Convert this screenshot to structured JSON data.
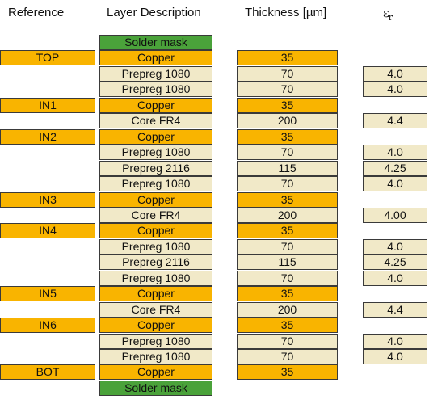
{
  "headers": {
    "reference": "Reference",
    "description": "Layer Description",
    "thickness": "Thickness [µm]",
    "er_symbol": "ε",
    "er_sub": "r"
  },
  "layers": [
    {
      "desc": "Solder mask",
      "type": "mask",
      "ref": "",
      "thk": "",
      "er": ""
    },
    {
      "desc": "Copper",
      "type": "copper",
      "ref": "TOP",
      "thk": "35",
      "er": ""
    },
    {
      "desc": "Prepreg 1080",
      "type": "prepreg",
      "ref": "",
      "thk": "70",
      "er": "4.0"
    },
    {
      "desc": "Prepreg 1080",
      "type": "prepreg",
      "ref": "",
      "thk": "70",
      "er": "4.0"
    },
    {
      "desc": "Copper",
      "type": "copper",
      "ref": "IN1",
      "thk": "35",
      "er": ""
    },
    {
      "desc": "Core FR4",
      "type": "core",
      "ref": "",
      "thk": "200",
      "er": "4.4"
    },
    {
      "desc": "Copper",
      "type": "copper",
      "ref": "IN2",
      "thk": "35",
      "er": ""
    },
    {
      "desc": "Prepreg 1080",
      "type": "prepreg",
      "ref": "",
      "thk": "70",
      "er": "4.0"
    },
    {
      "desc": "Prepreg 2116",
      "type": "prepreg",
      "ref": "",
      "thk": "115",
      "er": "4.25"
    },
    {
      "desc": "Prepreg 1080",
      "type": "prepreg",
      "ref": "",
      "thk": "70",
      "er": "4.0"
    },
    {
      "desc": "Copper",
      "type": "copper",
      "ref": "IN3",
      "thk": "35",
      "er": ""
    },
    {
      "desc": "Core FR4",
      "type": "core",
      "ref": "",
      "thk": "200",
      "er": "4.00"
    },
    {
      "desc": "Copper",
      "type": "copper",
      "ref": "IN4",
      "thk": "35",
      "er": ""
    },
    {
      "desc": "Prepreg 1080",
      "type": "prepreg",
      "ref": "",
      "thk": "70",
      "er": "4.0"
    },
    {
      "desc": "Prepreg 2116",
      "type": "prepreg",
      "ref": "",
      "thk": "115",
      "er": "4.25"
    },
    {
      "desc": "Prepreg 1080",
      "type": "prepreg",
      "ref": "",
      "thk": "70",
      "er": "4.0"
    },
    {
      "desc": "Copper",
      "type": "copper",
      "ref": "IN5",
      "thk": "35",
      "er": ""
    },
    {
      "desc": "Core FR4",
      "type": "core",
      "ref": "",
      "thk": "200",
      "er": "4.4"
    },
    {
      "desc": "Copper",
      "type": "copper",
      "ref": "IN6",
      "thk": "35",
      "er": ""
    },
    {
      "desc": "Prepreg 1080",
      "type": "prepreg",
      "ref": "",
      "thk": "70",
      "er": "4.0"
    },
    {
      "desc": "Prepreg 1080",
      "type": "prepreg",
      "ref": "",
      "thk": "70",
      "er": "4.0"
    },
    {
      "desc": "Copper",
      "type": "copper",
      "ref": "BOT",
      "thk": "35",
      "er": ""
    },
    {
      "desc": "Solder mask",
      "type": "mask",
      "ref": "",
      "thk": "",
      "er": ""
    }
  ],
  "colors": {
    "copper": "#f9b400",
    "prepreg": "#f1e9c8",
    "core": "#f1e9c8",
    "mask": "#4aa23a",
    "border": "#3a3a3a"
  }
}
